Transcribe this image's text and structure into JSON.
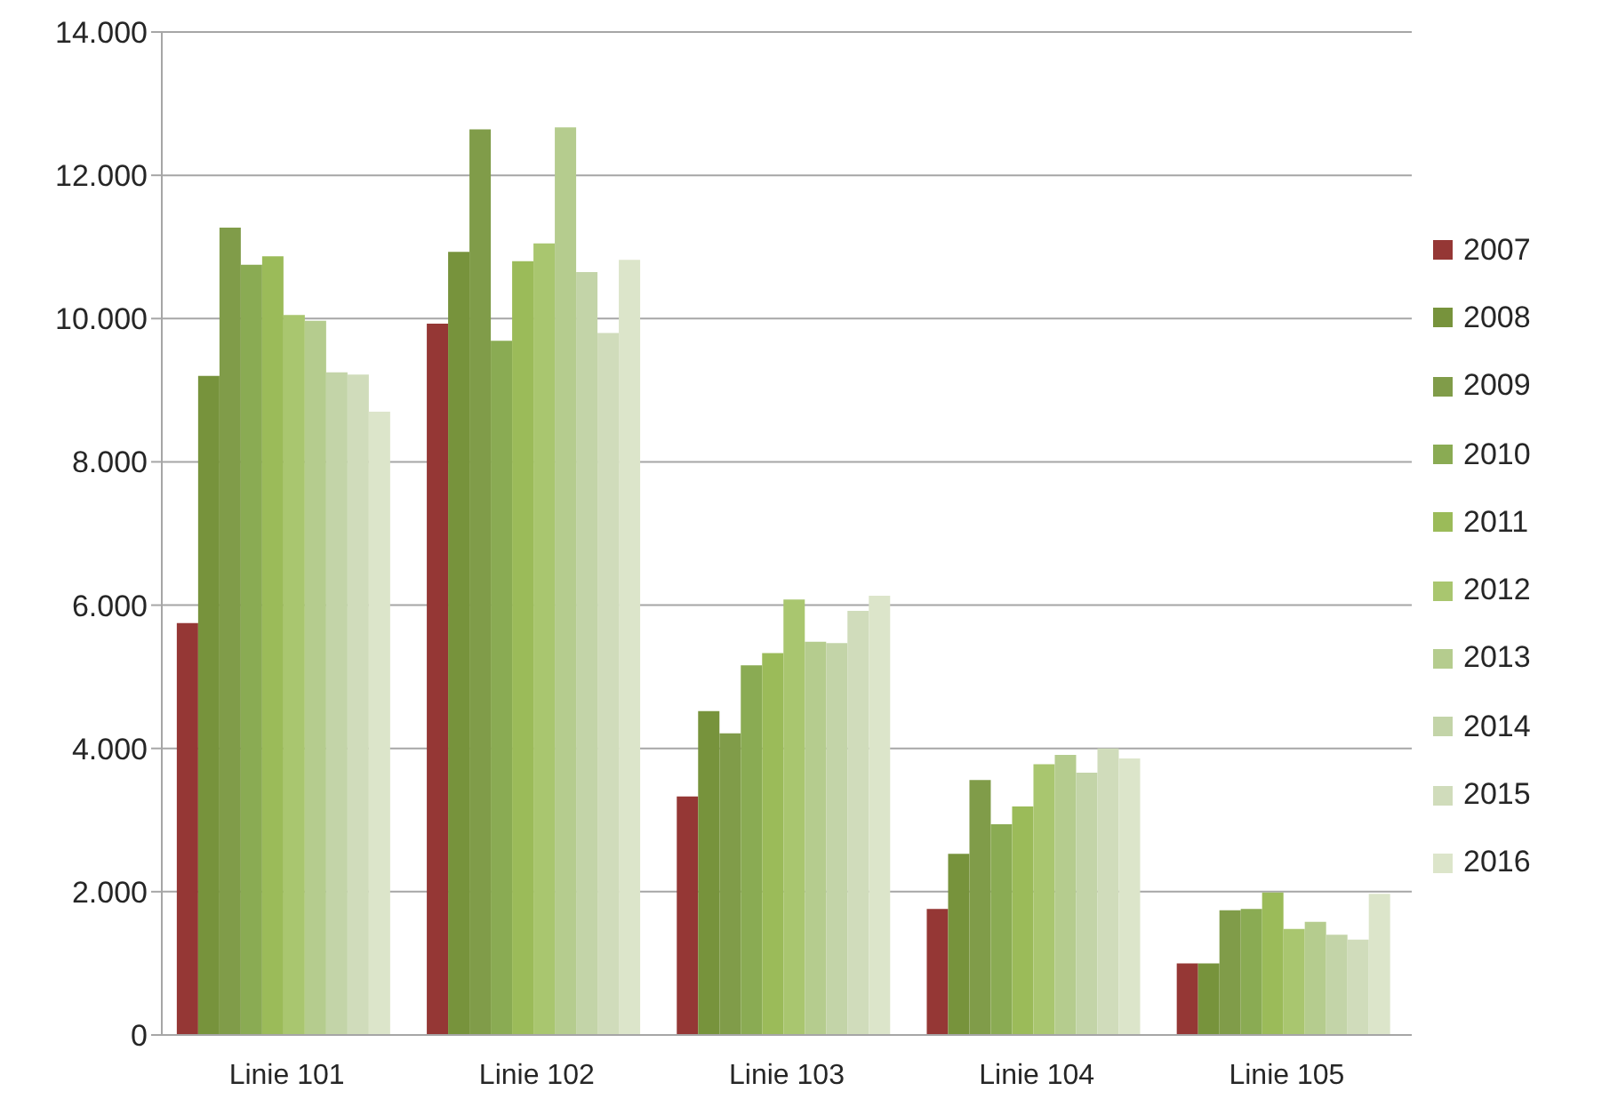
{
  "chart_data": {
    "type": "bar",
    "categories": [
      "Linie 101",
      "Linie 102",
      "Linie 103",
      "Linie 104",
      "Linie 105"
    ],
    "series": [
      {
        "name": "2007",
        "color": "#953735",
        "values": [
          5750,
          9930,
          3330,
          1760,
          1000
        ]
      },
      {
        "name": "2008",
        "color": "#77933c",
        "values": [
          9200,
          10930,
          4520,
          2530,
          1000
        ]
      },
      {
        "name": "2009",
        "color": "#809c49",
        "values": [
          11270,
          12640,
          4210,
          3560,
          1740
        ]
      },
      {
        "name": "2010",
        "color": "#8aab53",
        "values": [
          10750,
          9690,
          5160,
          2940,
          1760
        ]
      },
      {
        "name": "2011",
        "color": "#9bbb59",
        "values": [
          10870,
          10800,
          5330,
          3190,
          1990
        ]
      },
      {
        "name": "2012",
        "color": "#a9c66f",
        "values": [
          10050,
          11050,
          6080,
          3780,
          1480
        ]
      },
      {
        "name": "2013",
        "color": "#b5cc8e",
        "values": [
          9970,
          12670,
          5490,
          3910,
          1580
        ]
      },
      {
        "name": "2014",
        "color": "#c3d4a8",
        "values": [
          9250,
          10650,
          5470,
          3660,
          1400
        ]
      },
      {
        "name": "2015",
        "color": "#d0dcbb",
        "values": [
          9220,
          9800,
          5920,
          4000,
          1330
        ]
      },
      {
        "name": "2016",
        "color": "#dce5ca",
        "values": [
          8700,
          10820,
          6130,
          3860,
          1970
        ]
      }
    ],
    "ylim": [
      0,
      14000
    ],
    "yticks": [
      0,
      {
        "value": 2000,
        "label": "2.000"
      },
      {
        "value": 4000,
        "label": "4.000"
      },
      {
        "value": 6000,
        "label": "6.000"
      },
      {
        "value": 8000,
        "label": "8.000"
      },
      {
        "value": 10000,
        "label": "10.000"
      },
      {
        "value": 12000,
        "label": "12.000"
      },
      {
        "value": 14000,
        "label": "14.000"
      }
    ],
    "grid": "y",
    "legend": "right"
  }
}
